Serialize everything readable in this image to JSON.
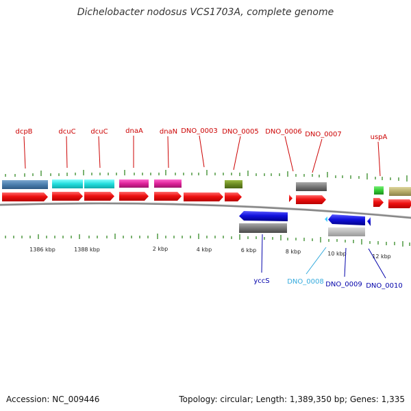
{
  "title": "Dichelobacter nodosus VCS1703A, complete genome",
  "footer": {
    "accession": "Accession: NC_009446",
    "summary": "Topology: circular; Length: 1,389,350 bp; Genes: 1,335"
  },
  "scale_labels": [
    {
      "id": "1386",
      "text": "1386 kbp"
    },
    {
      "id": "1388",
      "text": "1388 kbp"
    },
    {
      "id": "2",
      "text": "2 kbp"
    },
    {
      "id": "4",
      "text": "4 kbp"
    },
    {
      "id": "6",
      "text": "6 kbp"
    },
    {
      "id": "8",
      "text": "8 kbp"
    },
    {
      "id": "10",
      "text": "10 kbp"
    },
    {
      "id": "12",
      "text": "12 kbp"
    }
  ],
  "genes_top": [
    {
      "id": "dcpB",
      "label": "dcpB",
      "color": "#4a7ead"
    },
    {
      "id": "dcuC-1",
      "label": "dcuC",
      "color": "#22dddd"
    },
    {
      "id": "dcuC-2",
      "label": "dcuC",
      "color": "#22dddd"
    },
    {
      "id": "dnaA",
      "label": "dnaA",
      "color": "#dd2299"
    },
    {
      "id": "dnaN",
      "label": "dnaN",
      "color": "#dd2299"
    },
    {
      "id": "DNO_0003",
      "label": "DNO_0003",
      "color": "#dd2222"
    },
    {
      "id": "DNO_0005",
      "label": "DNO_0005",
      "color": "#6b8a22"
    },
    {
      "id": "DNO_0006",
      "label": "DNO_0006",
      "color": "#dd2222"
    },
    {
      "id": "DNO_0007",
      "label": "DNO_0007",
      "color": "#777777"
    },
    {
      "id": "uspA",
      "label": "uspA",
      "color": "#33cc33"
    }
  ],
  "genes_bottom": [
    {
      "id": "yccS",
      "label": "yccS",
      "color": "#1111cc"
    },
    {
      "id": "DNO_0008",
      "label": "DNO_0008",
      "color": "#22bbee"
    },
    {
      "id": "DNO_0009",
      "label": "DNO_0009",
      "color": "#1111cc"
    },
    {
      "id": "DNO_0010",
      "label": "DNO_0010",
      "color": "#1111cc"
    }
  ],
  "colors": {
    "top_label": "#cc0000",
    "bottom_label": "#0000aa",
    "light_blue_label": "#33aadd",
    "cds_red": "#ee1111",
    "tick_green": "#338822",
    "backbone": "#888888"
  }
}
